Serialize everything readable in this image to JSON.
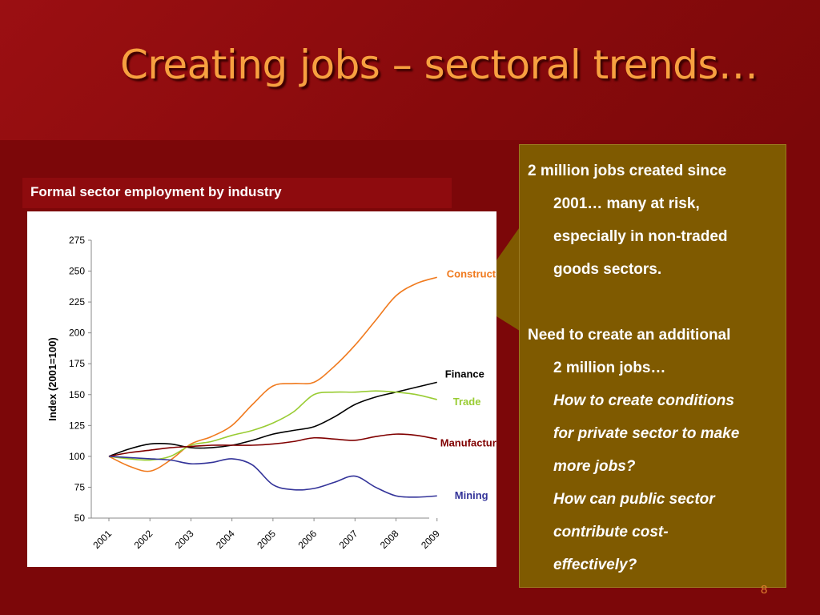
{
  "slide": {
    "title": "Creating jobs – sectoral trends…",
    "page_number": "8"
  },
  "chart_caption": "Formal sector employment by industry",
  "callout": {
    "para1_line1": "2 million jobs created since",
    "para1_rest": [
      "2001… many at risk,",
      "especially in non-traded",
      "goods sectors."
    ],
    "para2_line1": "Need to create an additional",
    "para2_rest": [
      "2 million jobs…"
    ],
    "question1": [
      "How to create conditions",
      "for private sector to make",
      "more jobs?"
    ],
    "question2": [
      "How can public sector",
      "contribute cost-",
      "effectively?"
    ]
  },
  "colors": {
    "Construction": "#f07a1e",
    "Finance": "#000000",
    "Trade": "#99cc33",
    "Manufacturing": "#800000",
    "Mining": "#333399"
  },
  "chart_data": {
    "type": "line",
    "ylabel": "Index (2001=100)",
    "xlabel": "",
    "ylim": [
      50,
      275
    ],
    "yticks": [
      50,
      75,
      100,
      125,
      150,
      175,
      200,
      225,
      250,
      275
    ],
    "categories": [
      "2001",
      "2002",
      "2003",
      "2004",
      "2005",
      "2006",
      "2007",
      "2008",
      "2009"
    ],
    "x": [
      2001,
      2001.5,
      2002,
      2002.5,
      2003,
      2003.5,
      2004,
      2004.5,
      2005,
      2005.5,
      2006,
      2006.5,
      2007,
      2007.5,
      2008,
      2008.5,
      2009
    ],
    "series": [
      {
        "name": "Construction",
        "values": [
          100,
          92,
          88,
          97,
          110,
          116,
          125,
          142,
          157,
          159,
          160,
          173,
          190,
          210,
          230,
          240,
          245
        ]
      },
      {
        "name": "Finance",
        "values": [
          100,
          106,
          110,
          110,
          107,
          107,
          109,
          113,
          118,
          121,
          124,
          132,
          142,
          148,
          152,
          156,
          160
        ]
      },
      {
        "name": "Trade",
        "values": [
          100,
          98,
          97,
          100,
          109,
          112,
          117,
          121,
          127,
          136,
          150,
          152,
          152,
          153,
          152,
          150,
          146
        ]
      },
      {
        "name": "Manufacturing",
        "values": [
          100,
          103,
          105,
          107,
          108,
          109,
          109,
          109,
          110,
          112,
          115,
          114,
          113,
          116,
          118,
          117,
          114
        ]
      },
      {
        "name": "Mining",
        "values": [
          100,
          99,
          98,
          97,
          94,
          95,
          98,
          93,
          77,
          73,
          74,
          79,
          84,
          75,
          68,
          67,
          68
        ]
      }
    ],
    "legend": "line-end labels",
    "grid": false
  }
}
